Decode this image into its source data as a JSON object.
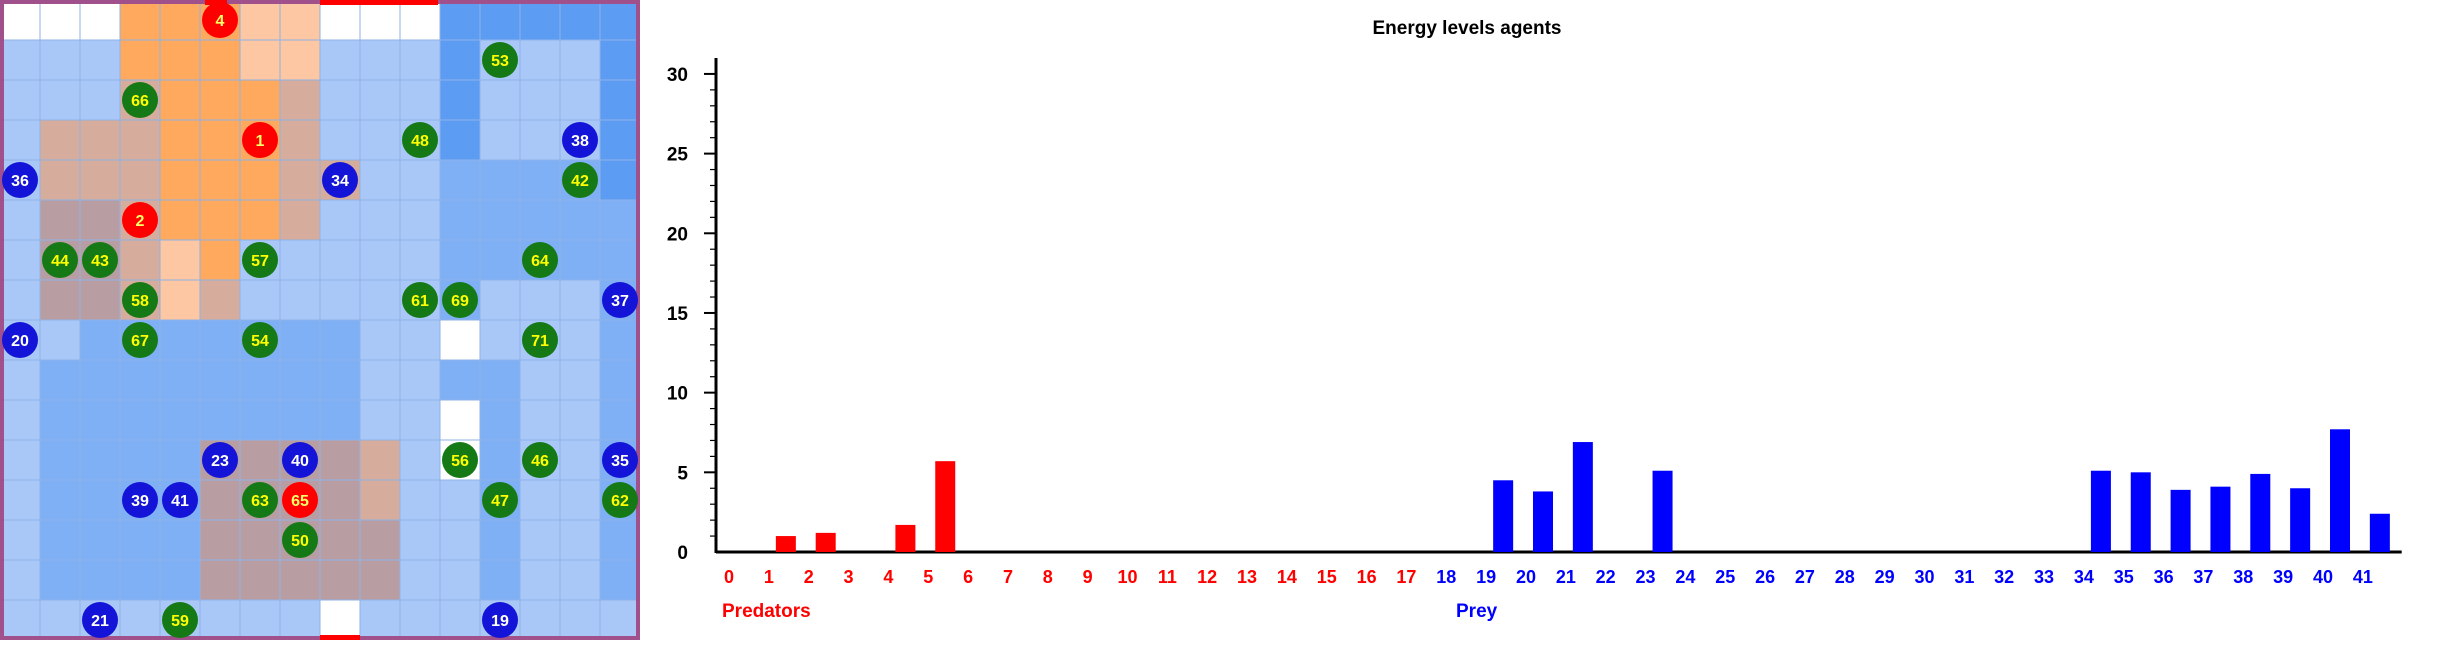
{
  "grid": {
    "cols": 16,
    "rows": 16,
    "colors": {
      "white": "#ffffff",
      "light_blue": "#a9c8f8",
      "mid_blue": "#7fb0f5",
      "blue": "#5c9cf2",
      "orange": "#ffa95e",
      "peach": "#fcc7a2",
      "tan": "#d6ac9c",
      "brown": "#b89ea2",
      "dark_orange": "#e99a72",
      "border": "#a0508a",
      "red_marker": "#ff0000"
    },
    "cells": [
      "WWWOOOPPWWWBBBBB",
      "LLLOOOPPLLLBLLLB",
      "LLLTOOOTLLLBLLLB",
      "LTTTOOOTLLLBLLLB",
      "LTTTOOOTTLLMMMMB",
      "LRRTOOOTLLLMMMMM",
      "LRRTPOLLLLLMMMMM",
      "LRRTPTLLLLLMLLLM",
      "LLMMMMMMMLLWLLLM",
      "LMMMMMMMMLLMMLLM",
      "LMMMMMMMMLLWMLLM",
      "LMMMMRRRRTLWMLLM",
      "LMMMMRRRRTLLMLLM",
      "LMMMMRRRRRLLMLLM",
      "LMMMMRRRRRLLMLLM",
      "LLLLLLLLWLLLLLLL"
    ]
  },
  "agents": [
    {
      "id": "1",
      "type": "predator",
      "col": 6,
      "row": 3
    },
    {
      "id": "2",
      "type": "predator",
      "col": 3,
      "row": 5
    },
    {
      "id": "4",
      "type": "predator",
      "col": 5,
      "row": 0
    },
    {
      "id": "65",
      "type": "predator",
      "col": 7,
      "row": 12
    },
    {
      "id": "19",
      "type": "prey",
      "col": 12,
      "row": 15
    },
    {
      "id": "20",
      "type": "prey",
      "col": 0,
      "row": 8
    },
    {
      "id": "21",
      "type": "prey",
      "col": 2,
      "row": 15
    },
    {
      "id": "23",
      "type": "prey",
      "col": 5,
      "row": 11
    },
    {
      "id": "34",
      "type": "prey",
      "col": 8,
      "row": 4
    },
    {
      "id": "35",
      "type": "prey",
      "col": 15,
      "row": 11
    },
    {
      "id": "36",
      "type": "prey",
      "col": 0,
      "row": 4
    },
    {
      "id": "37",
      "type": "prey",
      "col": 15,
      "row": 7
    },
    {
      "id": "38",
      "type": "prey",
      "col": 14,
      "row": 3
    },
    {
      "id": "39",
      "type": "prey",
      "col": 3,
      "row": 12
    },
    {
      "id": "40",
      "type": "prey",
      "col": 7,
      "row": 11
    },
    {
      "id": "41",
      "type": "prey",
      "col": 4,
      "row": 12
    },
    {
      "id": "42",
      "type": "plant",
      "col": 14,
      "row": 4
    },
    {
      "id": "43",
      "type": "plant",
      "col": 2,
      "row": 6
    },
    {
      "id": "44",
      "type": "plant",
      "col": 1,
      "row": 6
    },
    {
      "id": "46",
      "type": "plant",
      "col": 13,
      "row": 11
    },
    {
      "id": "47",
      "type": "plant",
      "col": 12,
      "row": 12
    },
    {
      "id": "48",
      "type": "plant",
      "col": 10,
      "row": 3
    },
    {
      "id": "50",
      "type": "plant",
      "col": 7,
      "row": 13
    },
    {
      "id": "53",
      "type": "plant",
      "col": 12,
      "row": 1
    },
    {
      "id": "54",
      "type": "plant",
      "col": 6,
      "row": 8
    },
    {
      "id": "56",
      "type": "plant",
      "col": 11,
      "row": 11
    },
    {
      "id": "57",
      "type": "plant",
      "col": 6,
      "row": 6
    },
    {
      "id": "58",
      "type": "plant",
      "col": 3,
      "row": 7
    },
    {
      "id": "59",
      "type": "plant",
      "col": 4,
      "row": 15
    },
    {
      "id": "61",
      "type": "plant",
      "col": 10,
      "row": 7
    },
    {
      "id": "62",
      "type": "plant",
      "col": 15,
      "row": 12
    },
    {
      "id": "63",
      "type": "plant",
      "col": 6,
      "row": 12
    },
    {
      "id": "64",
      "type": "plant",
      "col": 13,
      "row": 6
    },
    {
      "id": "66",
      "type": "plant",
      "col": 3,
      "row": 2
    },
    {
      "id": "67",
      "type": "plant",
      "col": 3,
      "row": 8
    },
    {
      "id": "69",
      "type": "plant",
      "col": 11,
      "row": 7
    },
    {
      "id": "71",
      "type": "plant",
      "col": 13,
      "row": 8
    }
  ],
  "agent_colors": {
    "predator": {
      "fill": "#ff0000",
      "text": "#ffff66"
    },
    "prey": {
      "fill": "#1414d8",
      "text": "#ffffff"
    },
    "plant": {
      "fill": "#157a15",
      "text": "#ffff00"
    }
  },
  "chart_data": {
    "type": "bar",
    "title": "Energy levels agents",
    "ylim": [
      0,
      31
    ],
    "yticks": [
      0,
      5,
      10,
      15,
      20,
      25,
      30
    ],
    "categories": [
      "0",
      "1",
      "2",
      "3",
      "4",
      "5",
      "6",
      "7",
      "8",
      "9",
      "10",
      "11",
      "12",
      "13",
      "14",
      "15",
      "16",
      "17",
      "18",
      "19",
      "20",
      "21",
      "22",
      "23",
      "24",
      "25",
      "26",
      "27",
      "28",
      "29",
      "30",
      "31",
      "32",
      "33",
      "34",
      "35",
      "36",
      "37",
      "38",
      "39",
      "40",
      "41"
    ],
    "values": [
      0,
      1.0,
      1.2,
      0,
      1.7,
      5.7,
      0,
      0,
      0,
      0,
      0,
      0,
      0,
      0,
      0,
      0,
      0,
      0,
      0,
      4.5,
      3.8,
      6.9,
      0,
      5.1,
      0,
      0,
      0,
      0,
      0,
      0,
      0,
      0,
      0,
      0,
      5.1,
      5.0,
      3.9,
      4.1,
      4.9,
      4.0,
      7.7,
      2.4
    ],
    "predator_indices": [
      0,
      17
    ],
    "prey_indices": [
      18,
      41
    ],
    "predator_label": "Predators",
    "prey_label": "Prey",
    "predator_color": "#ff0000",
    "prey_color": "#0000ff"
  }
}
